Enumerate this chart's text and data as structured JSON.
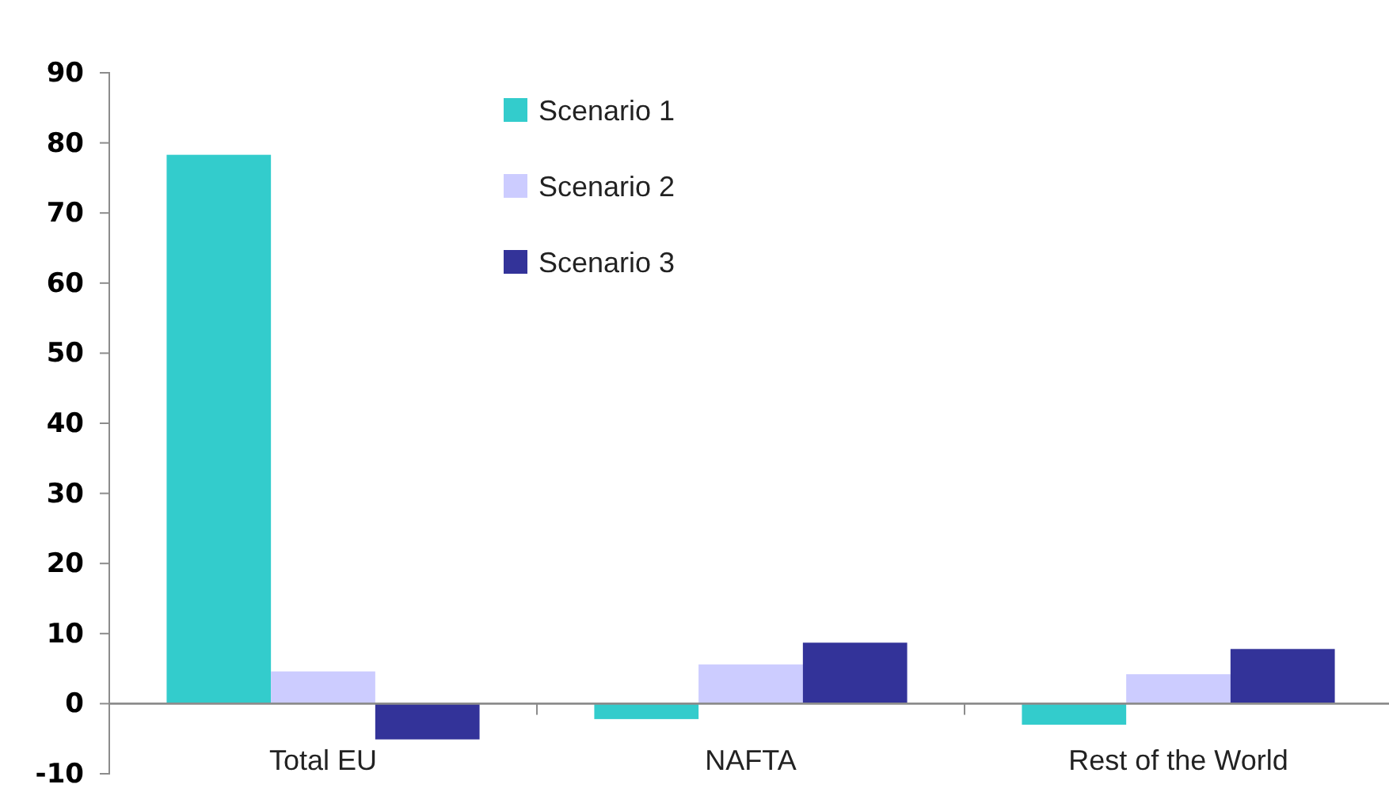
{
  "chart_data": {
    "type": "bar",
    "categories": [
      "Total EU",
      "NAFTA",
      "Rest of the World"
    ],
    "series": [
      {
        "name": "Scenario 1",
        "color": "#33cccc",
        "values": [
          78.3,
          -2.2,
          -3.0
        ]
      },
      {
        "name": "Scenario 2",
        "color": "#ccccff",
        "values": [
          4.6,
          5.6,
          4.2
        ]
      },
      {
        "name": "Scenario 3",
        "color": "#333399",
        "values": [
          -5.1,
          8.7,
          7.8
        ]
      }
    ],
    "ylim": [
      -10,
      90
    ],
    "yticks": [
      -10,
      0,
      10,
      20,
      30,
      40,
      50,
      60,
      70,
      80,
      90
    ],
    "grid": false,
    "legend": "top"
  }
}
